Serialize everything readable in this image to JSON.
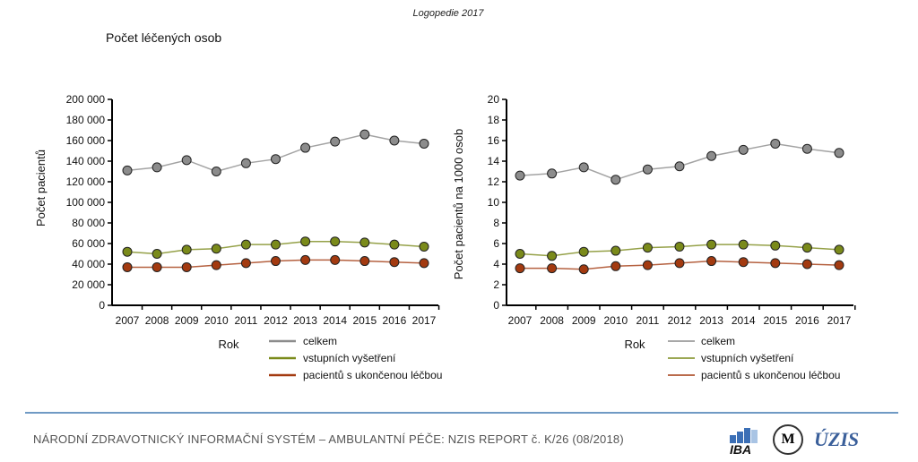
{
  "header": {
    "title": "Logopedie 2017",
    "section_title": "Počet léčených osob"
  },
  "footer": {
    "text": "NÁRODNÍ ZDRAVOTNICKÝ INFORMAČNÍ SYSTÉM – AMBULANTNÍ PÉČE: NZIS REPORT č. K/26 (08/2018)",
    "logos": [
      "IBA MU",
      "Masarykova univerzita",
      "ÚZIS ČR"
    ]
  },
  "chart_data": [
    {
      "type": "line",
      "xlabel": "Rok",
      "ylabel": "Počet pacientů",
      "ylim": [
        0,
        200000
      ],
      "yticks": [
        0,
        20000,
        40000,
        60000,
        80000,
        100000,
        120000,
        140000,
        160000,
        180000,
        200000
      ],
      "ytick_labels": [
        "0",
        "20 000",
        "40 000",
        "60 000",
        "80 000",
        "100 000",
        "120 000",
        "140 000",
        "160 000",
        "180 000",
        "200 000"
      ],
      "categories": [
        "2007",
        "2008",
        "2009",
        "2010",
        "2011",
        "2012",
        "2013",
        "2014",
        "2015",
        "2016",
        "2017"
      ],
      "grid": false,
      "legend": "bottom",
      "series": [
        {
          "name": "celkem",
          "color": "#8c8c8c",
          "values": [
            131000,
            134000,
            141000,
            130000,
            138000,
            142000,
            153000,
            159000,
            166000,
            160000,
            157000
          ]
        },
        {
          "name": "vstupních vyšetření",
          "color": "#7a8a1a",
          "values": [
            52000,
            50000,
            54000,
            55000,
            59000,
            59000,
            62000,
            62000,
            61000,
            59000,
            57000
          ]
        },
        {
          "name": "pacientů s ukončenou léčbou",
          "color": "#a33a10",
          "values": [
            37000,
            37000,
            37000,
            39000,
            41000,
            43000,
            44000,
            44000,
            43000,
            42000,
            41000
          ]
        }
      ]
    },
    {
      "type": "line",
      "xlabel": "Rok",
      "ylabel": "Počet pacientů  na 1000 osob",
      "ylim": [
        0,
        20
      ],
      "yticks": [
        0,
        2,
        4,
        6,
        8,
        10,
        12,
        14,
        16,
        18,
        20
      ],
      "ytick_labels": [
        "0",
        "2",
        "4",
        "6",
        "8",
        "10",
        "12",
        "14",
        "16",
        "18",
        "20"
      ],
      "categories": [
        "2007",
        "2008",
        "2009",
        "2010",
        "2011",
        "2012",
        "2013",
        "2014",
        "2015",
        "2016",
        "2017"
      ],
      "grid": false,
      "legend": "bottom",
      "series": [
        {
          "name": "celkem",
          "color": "#8c8c8c",
          "values": [
            12.6,
            12.8,
            13.4,
            12.2,
            13.2,
            13.5,
            14.5,
            15.1,
            15.7,
            15.2,
            14.8
          ]
        },
        {
          "name": "vstupních vyšetření",
          "color": "#7a8a1a",
          "values": [
            5.0,
            4.8,
            5.2,
            5.3,
            5.6,
            5.7,
            5.9,
            5.9,
            5.8,
            5.6,
            5.4
          ]
        },
        {
          "name": "pacientů s ukončenou léčbou",
          "color": "#a33a10",
          "values": [
            3.6,
            3.6,
            3.5,
            3.8,
            3.9,
            4.1,
            4.3,
            4.2,
            4.1,
            4.0,
            3.9
          ]
        }
      ]
    }
  ]
}
